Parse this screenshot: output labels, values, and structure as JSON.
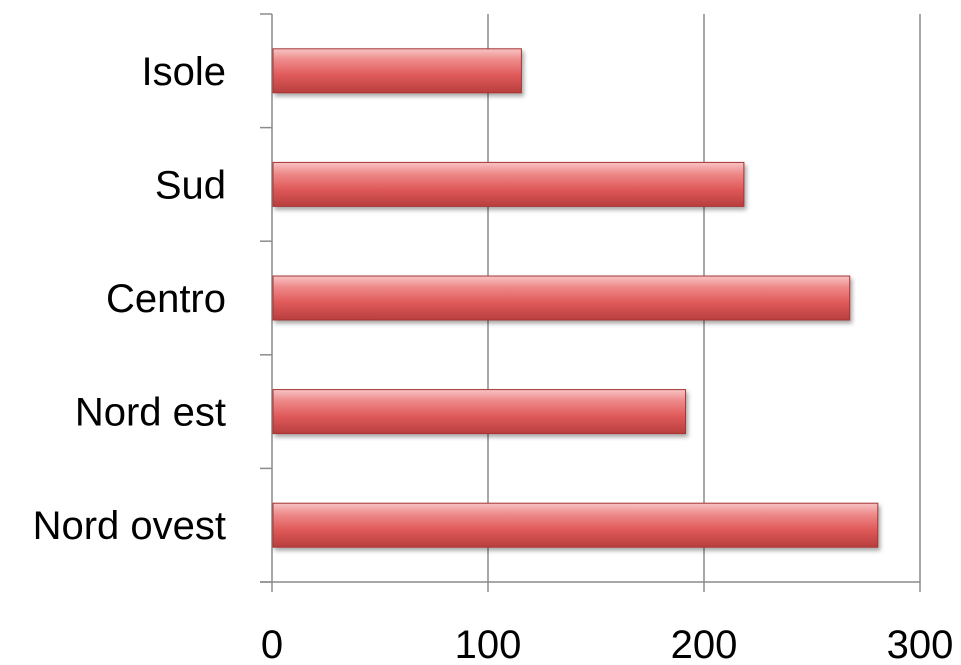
{
  "chart_data": {
    "type": "bar",
    "orientation": "horizontal",
    "categories": [
      "Isole",
      "Sud",
      "Centro",
      "Nord est",
      "Nord ovest"
    ],
    "values": [
      115,
      218,
      267,
      191,
      280
    ],
    "xlim": [
      0,
      300
    ],
    "xticks": [
      "0",
      "100",
      "200",
      "300"
    ],
    "grid": "vertical",
    "legend": "none",
    "bar_color": "#e05a5a"
  }
}
